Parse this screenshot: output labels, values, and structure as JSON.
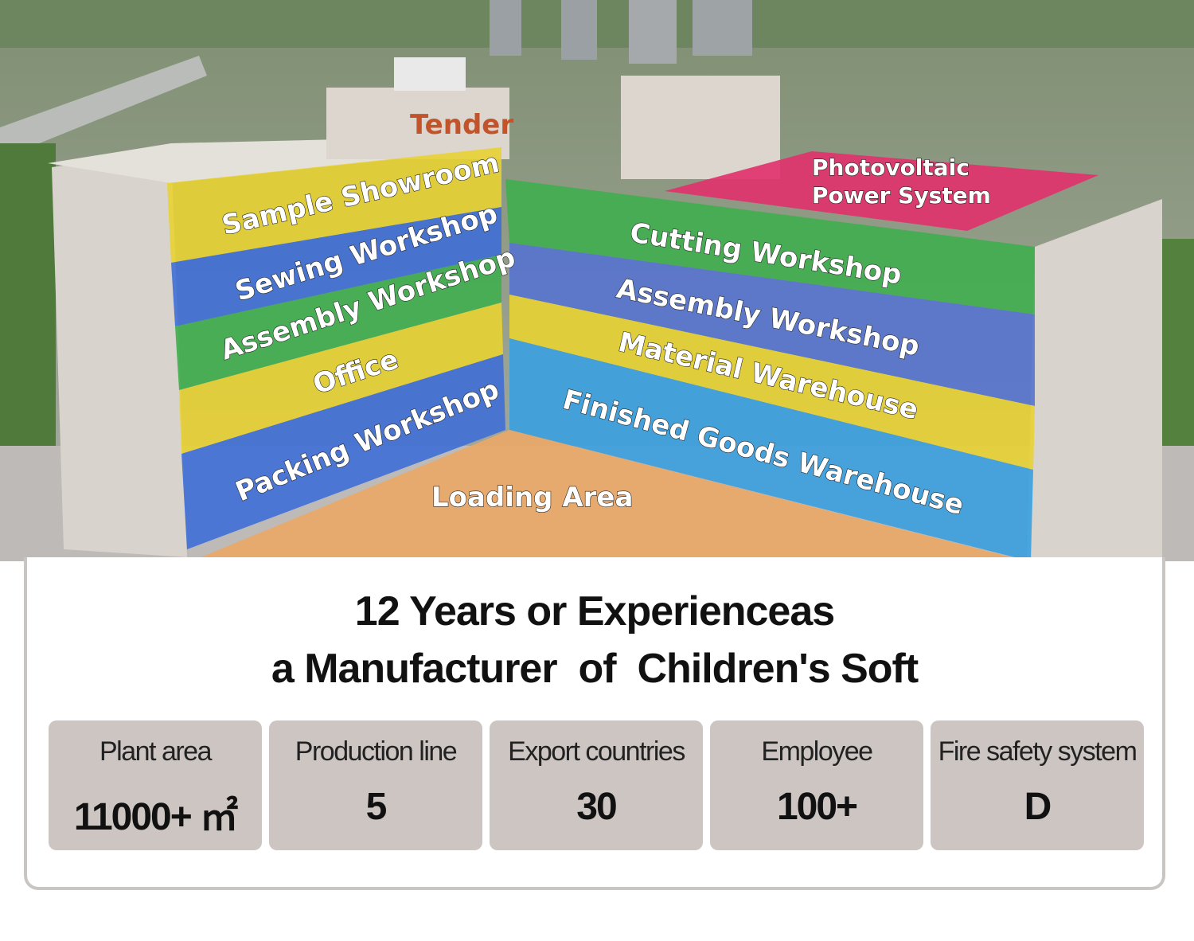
{
  "photo": {
    "logo": "Tender",
    "zones": {
      "sample_showroom": "Sample Showroom",
      "sewing_workshop": "Sewing Workshop",
      "assembly_workshop_left": "Assembly Workshop",
      "office": "Office",
      "packing_workshop": "Packing Workshop",
      "loading_area": "Loading Area",
      "photovoltaic_line1": "Photovoltaic",
      "photovoltaic_line2": "Power System",
      "cutting_workshop": "Cutting Workshop",
      "assembly_workshop_right": "Assembly Workshop",
      "material_warehouse": "Material Warehouse",
      "finished_goods_warehouse": "Finished Goods Warehouse"
    },
    "colors": {
      "yellow": "#e8d233",
      "blue": "#3f6fd6",
      "green": "#3fae4f",
      "pink": "#e0336e",
      "orange": "#e9a868",
      "light_blue": "#3aa0e0"
    }
  },
  "headline": {
    "line1": "12 Years or Experienceas",
    "line2": "a Manufacturer  of  Children's Soft"
  },
  "stats": [
    {
      "label": "Plant area",
      "value": "11000+ ㎡"
    },
    {
      "label": "Production line",
      "value": "5"
    },
    {
      "label": "Export countries",
      "value": "30"
    },
    {
      "label": "Employee",
      "value": "100+"
    },
    {
      "label": "Fire safety system",
      "value": "D"
    }
  ]
}
